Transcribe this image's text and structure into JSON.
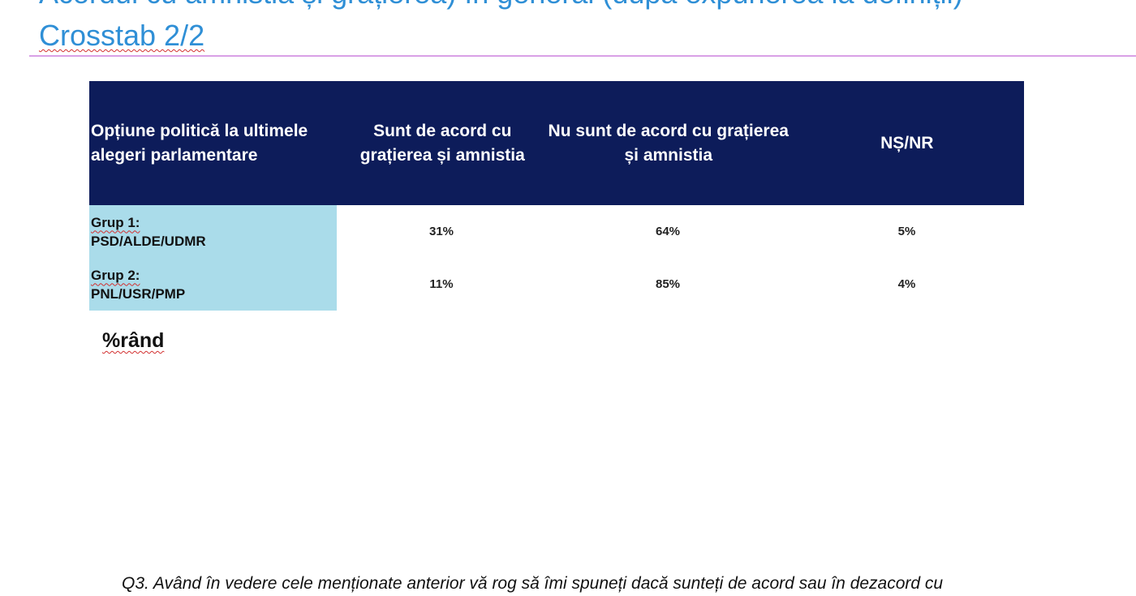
{
  "title": {
    "line1": "Acordul cu amnistia și grațierea) în general (după expunerea la definiții)",
    "line2": "Crosstab 2/2"
  },
  "table": {
    "headers": [
      "Opțiune politică la ultimele alegeri parlamentare",
      "Sunt de acord cu grațierea și amnistia",
      "Nu sunt de acord cu grațierea și amnistia",
      "NȘ/NR"
    ],
    "rows": [
      {
        "label_top": "Grup 1:",
        "label_bottom": "PSD/ALDE/UDMR",
        "values": [
          "31%",
          "64%",
          "5%"
        ]
      },
      {
        "label_top": "Grup 2:",
        "label_bottom": "PNL/USR/PMP",
        "values": [
          "11%",
          "85%",
          "4%"
        ]
      }
    ],
    "colors": {
      "header_bg": "#0d1c5a",
      "label_bg": "#aadcea"
    }
  },
  "note": "%rând",
  "question": "Q3. Având în vedere cele  menționate anterior vă rog să îmi spuneți dacă sunteți de acord sau în dezacord cu"
}
